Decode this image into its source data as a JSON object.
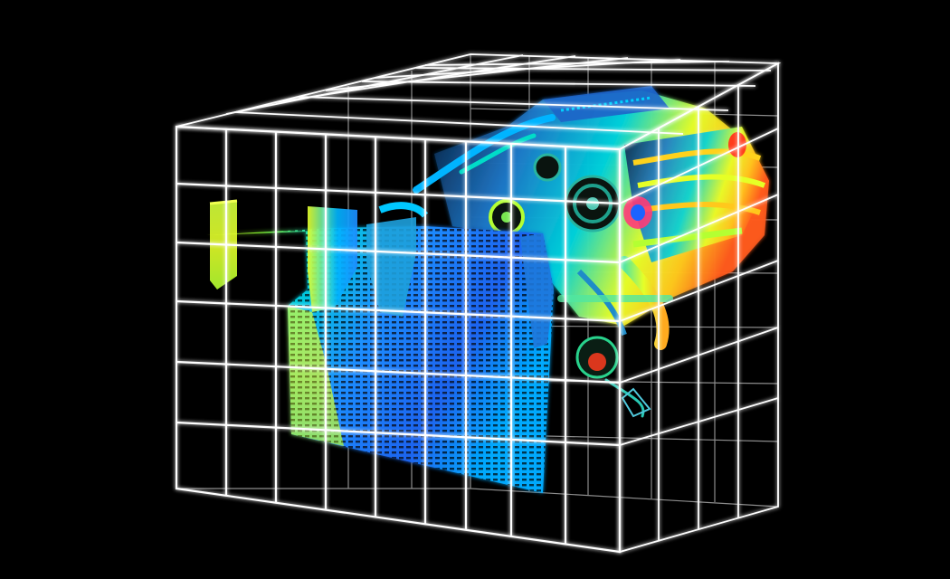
{
  "scene": {
    "background": "#000000",
    "subject": "engine-cooling-thermal-simulation-render",
    "grid_color": "#ffffff",
    "heatmap_colors": [
      "#1e3cff",
      "#00b4ff",
      "#00e6c8",
      "#7dff3c",
      "#e6ff28",
      "#ffc81e",
      "#ff3c1e"
    ]
  }
}
